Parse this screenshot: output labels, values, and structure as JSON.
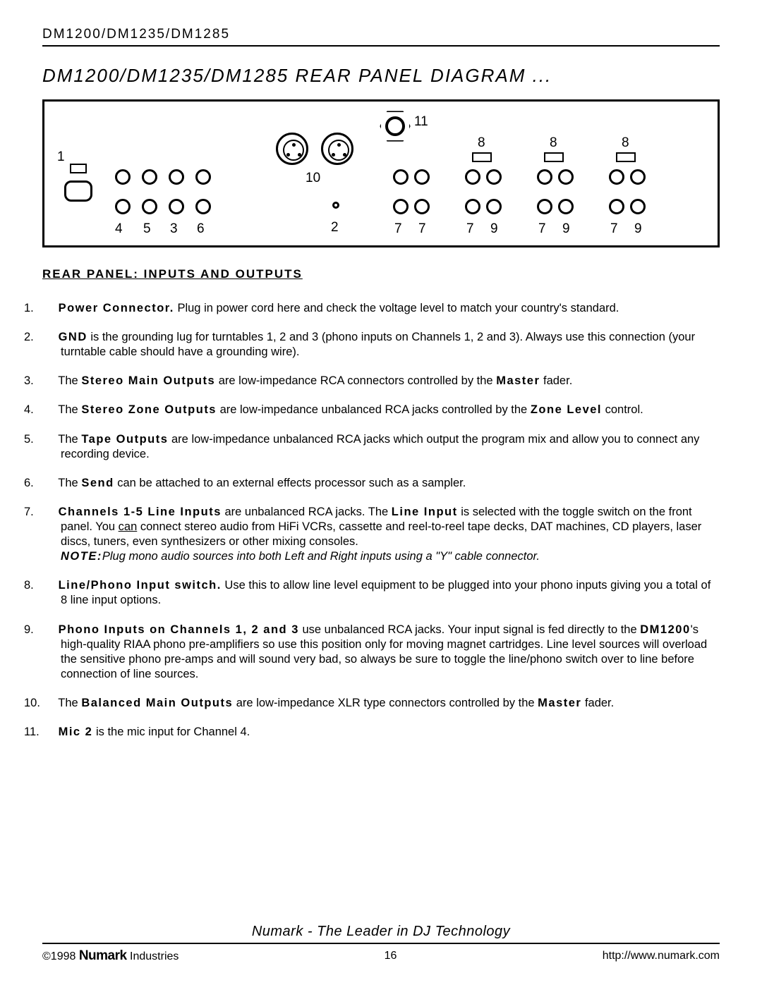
{
  "header": "DM1200/DM1235/DM1285",
  "title": "DM1200/DM1235/DM1285 REAR PANEL DIAGRAM ...",
  "section_head": "REAR PANEL: INPUTS AND OUTPUTS",
  "diagram": {
    "labels": {
      "l1": "1",
      "l2": "2",
      "l3": "3",
      "l4": "4",
      "l5": "5",
      "l6": "6",
      "l7a": "7",
      "l7b": "7",
      "l7c": "7",
      "l7d": "7",
      "l7e": "7",
      "l8a": "8",
      "l8b": "8",
      "l8c": "8",
      "l9a": "9",
      "l9b": "9",
      "l9c": "9",
      "l10": "10",
      "l11": "11"
    },
    "style": {
      "border_w": 3,
      "circle_w": 3,
      "rca_d": 22,
      "label_fs": 19,
      "switch_w": 28,
      "switch_h": 14,
      "xlr_d": 46
    }
  },
  "items": [
    {
      "n": "1.",
      "html": "<span class='bold spaced'>Power Connector.</span> Plug in power cord here and check the voltage level to match your country's standard."
    },
    {
      "n": "2.",
      "html": "<span class='bold spaced'>GND</span> is the grounding lug for turntables 1, 2 and 3 (phono inputs on Channels 1, 2 and 3). Always use this connection (your turntable cable should have a grounding wire)."
    },
    {
      "n": "3.",
      "html": "The <span class='bold spaced'>Stereo Main Outputs</span> are low-impedance RCA connectors controlled by the <span class='bold spaced'>Master</span> fader."
    },
    {
      "n": "4.",
      "html": "The <span class='bold spaced'>Stereo Zone Outputs</span> are low-impedance unbalanced RCA jacks controlled by the <span class='bold spaced'>Zone Level</span> control."
    },
    {
      "n": "5.",
      "html": "The <span class='bold spaced'>Tape Outputs</span> are low-impedance unbalanced RCA jacks which output the program mix and allow you to connect any  recording device."
    },
    {
      "n": "6.",
      "html": "The <span class='bold spaced'>Send</span> can be attached to an external effects processor such as a sampler."
    },
    {
      "n": "7.",
      "html": "<span class='bold spaced'>Channels 1-5 Line Inputs</span> are unbalanced RCA jacks. The <span class='bold spaced'>Line Input</span> is selected with the  toggle switch on the front panel.   You <span class='underline'>can</span> connect stereo audio from HiFi VCRs, cassette and reel-to-reel tape decks, DAT machines, CD players, laser discs, tuners, even synthesizers or other mixing consoles.<br><span class='note-it'><span class='bold spaced'>NOTE:</span>Plug mono audio sources into both Left and Right inputs using a \"Y\" cable connector.</span>"
    },
    {
      "n": "8.",
      "html": "<span class='bold spaced'>Line/Phono Input switch.</span>  Use this to allow line level equipment to be plugged into your phono inputs giving you a total of 8 line input options."
    },
    {
      "n": "9.",
      "html": "<span class='bold spaced'>Phono Inputs on Channels 1, 2 and 3</span> use unbalanced RCA jacks. Your input signal is fed directly to the <span class='bold spaced'>DM1200</span>'s high-quality RIAA phono pre-amplifiers so use this position only for moving magnet cartridges. Line level sources will overload the sensitive phono pre-amps and will sound very bad, so always be sure to toggle the line/phono switch over to line before connection of line sources."
    },
    {
      "n": "10.",
      "html": "The <span class='bold spaced'>Balanced Main Outputs</span> are low-impedance XLR type connectors controlled by the <span class='bold spaced'>Master</span> fader."
    },
    {
      "n": "11.",
      "html": "<span class='bold spaced'>Mic 2</span> is the mic input for Channel 4."
    }
  ],
  "footer": {
    "tagline": "Numark - The Leader in DJ Technology",
    "copyright_pre": "©1998 ",
    "brand": "Numark",
    "copyright_post": " Industries",
    "page": "16",
    "url": "http://www.numark.com"
  }
}
